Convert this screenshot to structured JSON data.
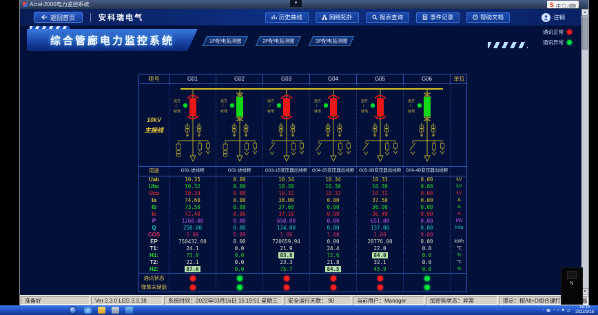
{
  "window": {
    "title": "Acrel-2000电力监控系统",
    "dropdown_glyph": "▾"
  },
  "ime": {
    "logo": "S",
    "icons": [
      "中",
      "’",
      "◎",
      "♪",
      "⌨"
    ]
  },
  "header": {
    "home_label": "返回首页",
    "brand": "安科瑞电气",
    "nav": [
      {
        "id": "history-curve",
        "label": "历史曲线"
      },
      {
        "id": "network-topology",
        "label": "网络拓扑"
      },
      {
        "id": "report-query",
        "label": "报表查询"
      },
      {
        "id": "event-record",
        "label": "事件记录"
      },
      {
        "id": "help-doc",
        "label": "帮助文档"
      }
    ],
    "logout_label": "注销"
  },
  "banner": {
    "title": "综合管廊电力监控系统",
    "tabs": [
      "1P配电监测图",
      "2P配电监测图",
      "3P配电监测图"
    ],
    "legend": [
      {
        "label": "通讯正常",
        "color": "#ff1f1f"
      },
      {
        "label": "通讯异常",
        "color": "#00e23c"
      }
    ]
  },
  "diagram": {
    "cabinet_header": "柜号",
    "unit_header": "单位",
    "purpose_header": "用途",
    "side_label_1": "10kV",
    "side_label_2": "主接线",
    "remote_local": [
      "远方",
      "就地"
    ],
    "columns": [
      {
        "id": "G01",
        "purpose": "G01-进线柜",
        "breaker": "red",
        "variant": "A"
      },
      {
        "id": "G02",
        "purpose": "G02-进线柜",
        "breaker": "green",
        "variant": "A"
      },
      {
        "id": "G03",
        "purpose": "G03-1B变压器出线柜",
        "breaker": "red",
        "variant": "B"
      },
      {
        "id": "G04",
        "purpose": "G04-2B变压器出线柜",
        "breaker": "red",
        "variant": "B"
      },
      {
        "id": "G05",
        "purpose": "G05-3B变压器出线柜",
        "breaker": "red",
        "variant": "B"
      },
      {
        "id": "G06",
        "purpose": "G06-4B变压器出线柜",
        "breaker": "green",
        "variant": "B"
      }
    ]
  },
  "measurements": {
    "rows": [
      {
        "label": "Uab",
        "unit": "kV",
        "color": "#e0c832",
        "values": [
          "10.35",
          "0.00",
          "10.34",
          "10.34",
          "10.33",
          "0.00"
        ]
      },
      {
        "label": "Ubc",
        "unit": "kV",
        "color": "#2ade2a",
        "values": [
          "10.32",
          "0.00",
          "10.30",
          "10.30",
          "10.30",
          "0.00"
        ]
      },
      {
        "label": "Uca",
        "unit": "kV",
        "color": "#f03030",
        "values": [
          "10.34",
          "0.00",
          "10.32",
          "10.32",
          "10.32",
          "0.00"
        ]
      },
      {
        "label": "Ia",
        "unit": "A",
        "color": "#e0c832",
        "values": [
          "74.60",
          "0.00",
          "38.00",
          "0.00",
          "37.50",
          "0.00"
        ]
      },
      {
        "label": "Ib",
        "unit": "A",
        "color": "#2ade2a",
        "values": [
          "73.50",
          "0.00",
          "37.60",
          "0.00",
          "36.90",
          "0.00"
        ]
      },
      {
        "label": "Ic",
        "unit": "A",
        "color": "#f03030",
        "values": [
          "72.40",
          "0.00",
          "37.10",
          "0.00",
          "36.40",
          "0.00"
        ]
      },
      {
        "label": "P",
        "unit": "kW",
        "color": "#c75ae8",
        "values": [
          "1260.00",
          "0.00",
          "650.00",
          "0.00",
          "651.00",
          "0.00"
        ]
      },
      {
        "label": "Q",
        "unit": "kVa",
        "color": "#22cccc",
        "values": [
          "250.00",
          "0.00",
          "124.00",
          "0.00",
          "137.00",
          "0.00"
        ]
      },
      {
        "label": "COS",
        "unit": "",
        "color": "#e03060",
        "values": [
          "1.00",
          "0.00",
          "1.00",
          "1.00",
          "1.00",
          "0.00"
        ]
      },
      {
        "label": "EP",
        "unit": "kWh",
        "color": "#d8d8c0",
        "values": [
          "750432.00",
          "0.00",
          "720659.94",
          "0.00",
          "28776.00",
          "0.00"
        ]
      },
      {
        "label": "T1:",
        "unit": "℃",
        "color": "#e8e8d8",
        "values": [
          "24.1",
          "0.0",
          "21.9",
          "24.4",
          "22.0",
          "0.0"
        ]
      },
      {
        "label": "H1:",
        "unit": "%",
        "color": "#2ade2a",
        "values": [
          "73.0",
          "0.0",
          "83.8",
          "72.6",
          "84.0",
          "0.0"
        ],
        "highlight": [
          false,
          false,
          true,
          false,
          true,
          false
        ]
      },
      {
        "label": "T2:",
        "unit": "℃",
        "color": "#e8e8d8",
        "values": [
          "22.1",
          "0.0",
          "23.3",
          "21.8",
          "32.1",
          "0.0"
        ]
      },
      {
        "label": "H2:",
        "unit": "%",
        "color": "#2ade2a",
        "values": [
          "87.6",
          "0.0",
          "75.7",
          "84.5",
          "45.9",
          "0.0"
        ],
        "highlight": [
          true,
          false,
          false,
          true,
          false,
          false
        ]
      }
    ]
  },
  "status_rows": [
    {
      "label": "通讯状态",
      "dots": [
        "red",
        "green",
        "red",
        "red",
        "red",
        "green"
      ]
    },
    {
      "label": "弹簧未储能",
      "dots": [
        "red",
        "green",
        "red",
        "red",
        "red",
        "green"
      ]
    }
  ],
  "statusbar": {
    "segments": [
      "准备好",
      "Ver 2.3.0 LEG 3.3.18",
      "系统时间：2022年03月16日  15:19:51  星期三",
      "安全运行天数：  90",
      "当前用户：Manager",
      "加密狗状态：异常",
      "提示：按Alt+D组合键打开功能面板"
    ]
  },
  "taskbar": {
    "clock_time": "15:19",
    "clock_date": "2022/3/16"
  },
  "colors": {
    "dot_red": "#ff1f1f",
    "dot_green": "#00e23c",
    "bus_yellow": "#d8c520",
    "line_yellow": "#bfae30"
  }
}
